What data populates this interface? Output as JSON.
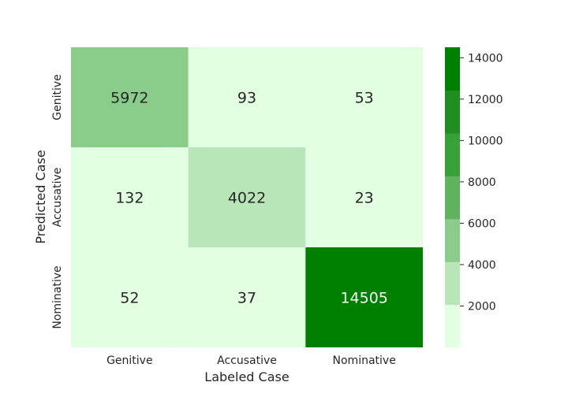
{
  "chart_data": {
    "type": "heatmap",
    "title": "",
    "xlabel": "Labeled Case",
    "ylabel": "Predicted Case",
    "x_categories": [
      "Genitive",
      "Accusative",
      "Nominative"
    ],
    "y_categories": [
      "Genitive",
      "Accusative",
      "Nominative"
    ],
    "values": [
      [
        5972,
        93,
        53
      ],
      [
        132,
        4022,
        23
      ],
      [
        52,
        37,
        14505
      ]
    ],
    "colorbar": {
      "ticks": [
        2000,
        4000,
        6000,
        8000,
        10000,
        12000,
        14000
      ],
      "range": [
        0,
        14505
      ],
      "colors": [
        "#e2ffe2",
        "#b8e6b8",
        "#8acc8a",
        "#5fb35f",
        "#36a136",
        "#1e8f1e",
        "#008000"
      ]
    }
  }
}
